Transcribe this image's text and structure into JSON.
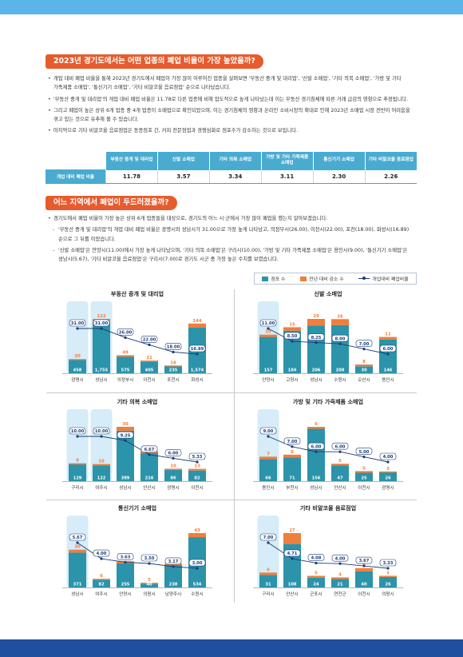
{
  "colors": {
    "band_top": "#5cb5e8",
    "band_bottom": "#1f4f9e",
    "heading": "#e65c2e",
    "table_header": "#4aabd0",
    "stores": "#2b93aa",
    "decrease": "#f07e3c",
    "ratio": "#1b3c76",
    "highlight": "#d6ecf8"
  },
  "section1": {
    "heading": "2023년 경기도에서는 어떤 업종의 폐업 비율이 가장 높았을까?",
    "bullets": [
      "개업 대비 폐업 비율을 통해 2023년 경기도에서 폐업이 가장 많이 이루어진 업종을 살펴보면 '부동산 중개 및 대리업', '신발 소매업', '기타 의복 소매업', '가방 및 기타 가죽제품 소매업', '통신기기 소매업', '기타 비알코올 음료점업' 순으로 나타났습니다.",
      "'부동산 중개 및 대리업'의 개업 대비 폐업 비율은 11.78로 다른 업종에 비해 압도적으로 높게 나타났는데 이는 부동산 경기침체에 따른 거래 급감의 영향으로 추정됩니다.",
      "그리고 폐업이 높은 상위 6개 업종 중 4개 업종이 소매업으로 확인되었으며, 이는 경기침체의 영향과 온라인 소비시장의 확대로 인해 2023년 소매업 시장 전반이 어려움을 겪고 있는 것으로 유추해 볼 수 있습니다.",
      "마지막으로 기타 비알코올 음료점업은 동종점포 간, 커피 전문점업과 경쟁심화로 점포수가 감소하는 것으로 보입니다."
    ]
  },
  "table": {
    "headers": [
      "부동산 중개 및 대리업",
      "신발 소매업",
      "기타 의복 소매업",
      "가방 및 기타 가죽제품 소매업",
      "통신기기 소매업",
      "기타 비알코올 음료점업"
    ],
    "row_label": "개업 대비 폐업 비율",
    "values": [
      "11.78",
      "3.57",
      "3.34",
      "3.11",
      "2.30",
      "2.26"
    ]
  },
  "section2": {
    "heading": "어느 지역에서 폐업이 두드러졌을까?",
    "intro": "경기도에서 폐업 비율이 가장 높은 상위 6개 업종들을 대상으로, 경기도의 어느 시·군에서 가장 많이 폐업을 했는지 알아보겠습니다.",
    "details": [
      "'부동산 중개 및 대리업'의 개업 대비 폐업 비율은 광명시와 성남시가 31.00으로 가장 높게 나타났고, 의정부시(26.00), 이천시(22.00), 포천(18.00), 화성시(16.89) 순으로 그 뒤를 이었습니다.",
      "'신발 소매업'은 안양시(11.00)에서 가장 높게 나타났으며, '기타 의복 소매업'은 구리시(10.00), '가방 및 기타 가죽제품 소매업'은 용인시(9.00), '통신기기 소매업'은 성남시(5.67), '기타 비알코올 음료점업'은 구리시(7.00)로 경기도 시군 중 가장 높은 수치를 보였습니다."
    ]
  },
  "legend": {
    "stores_label": "점포 수",
    "decrease_label": "전년 대비 감소 수",
    "ratio_label": "개업대비 폐업비율"
  },
  "chart_data": [
    {
      "type": "bar",
      "stacked": true,
      "title": "부동산 중개 및 대리업",
      "categories": [
        "광명시",
        "성남시",
        "의정부시",
        "이천시",
        "포천시",
        "화성시"
      ],
      "series": [
        {
          "name": "점포 수",
          "type": "bar",
          "values": [
            458,
            1755,
            575,
            405,
            235,
            1574
          ]
        },
        {
          "name": "전년 대비 감소 수",
          "type": "bar",
          "values": [
            30,
            122,
            49,
            21,
            18,
            144
          ]
        },
        {
          "name": "개업대비 폐업비율",
          "type": "line",
          "values": [
            31.0,
            31.0,
            26.0,
            22.0,
            18.0,
            16.89
          ]
        }
      ]
    },
    {
      "type": "bar",
      "stacked": true,
      "title": "신발 소매업",
      "categories": [
        "안양시",
        "고양시",
        "성남시",
        "수원시",
        "오산시",
        "용인시"
      ],
      "series": [
        {
          "name": "점포 수",
          "type": "bar",
          "values": [
            157,
            184,
            206,
            208,
            30,
            146
          ]
        },
        {
          "name": "전년 대비 감소 수",
          "type": "bar",
          "values": [
            10,
            15,
            29,
            26,
            8,
            11
          ]
        },
        {
          "name": "개업대비 폐업비율",
          "type": "line",
          "values": [
            11.0,
            8.5,
            8.25,
            8.0,
            7.0,
            6.0
          ]
        }
      ]
    },
    {
      "type": "bar",
      "stacked": true,
      "title": "기타 의복 소매업",
      "categories": [
        "구리시",
        "여주시",
        "성남시",
        "안산시",
        "광명시",
        "이천시"
      ],
      "series": [
        {
          "name": "점포 수",
          "type": "bar",
          "values": [
            129,
            122,
            389,
            216,
            86,
            82
          ]
        },
        {
          "name": "전년 대비 감소 수",
          "type": "bar",
          "values": [
            9,
            10,
            30,
            17,
            10,
            13
          ]
        },
        {
          "name": "개업대비 폐업비율",
          "type": "line",
          "values": [
            10.0,
            10.0,
            9.25,
            6.67,
            6.0,
            5.33
          ]
        }
      ]
    },
    {
      "type": "bar",
      "stacked": true,
      "title": "가방 및 기타 가죽제품 소매업",
      "categories": [
        "용인시",
        "부천시",
        "성남시",
        "안산시",
        "이천시",
        "광명시"
      ],
      "series": [
        {
          "name": "점포 수",
          "type": "bar",
          "values": [
            66,
            71,
            156,
            47,
            25,
            26
          ]
        },
        {
          "name": "전년 대비 감소 수",
          "type": "bar",
          "values": [
            7,
            8,
            6,
            5,
            5,
            3
          ]
        },
        {
          "name": "개업대비 폐업비율",
          "type": "line",
          "values": [
            9.0,
            7.0,
            6.0,
            6.0,
            5.0,
            4.0
          ]
        }
      ]
    },
    {
      "type": "bar",
      "stacked": true,
      "title": "통신기기 소매업",
      "categories": [
        "성남시",
        "여주시",
        "안양시",
        "의왕시",
        "남양주시",
        "수원시"
      ],
      "series": [
        {
          "name": "점포 수",
          "type": "bar",
          "values": [
            371,
            82,
            255,
            40,
            238,
            534
          ]
        },
        {
          "name": "전년 대비 감소 수",
          "type": "bar",
          "values": [
            30,
            6,
            24,
            5,
            15,
            43
          ]
        },
        {
          "name": "개업대비 폐업비율",
          "type": "line",
          "values": [
            5.67,
            4.0,
            3.63,
            3.5,
            3.17,
            3.0
          ]
        }
      ]
    },
    {
      "type": "bar",
      "stacked": true,
      "title": "기타 비알코올 음료점업",
      "categories": [
        "구리시",
        "안산시",
        "군포시",
        "연천군",
        "이천시",
        "의왕시"
      ],
      "series": [
        {
          "name": "점포 수",
          "type": "bar",
          "values": [
            31,
            108,
            24,
            21,
            40,
            26
          ]
        },
        {
          "name": "전년 대비 감소 수",
          "type": "bar",
          "values": [
            6,
            27,
            5,
            4,
            8,
            3
          ]
        },
        {
          "name": "개업대비 폐업비율",
          "type": "line",
          "values": [
            7.0,
            4.71,
            4.08,
            4.0,
            3.67,
            3.33
          ]
        }
      ]
    }
  ]
}
